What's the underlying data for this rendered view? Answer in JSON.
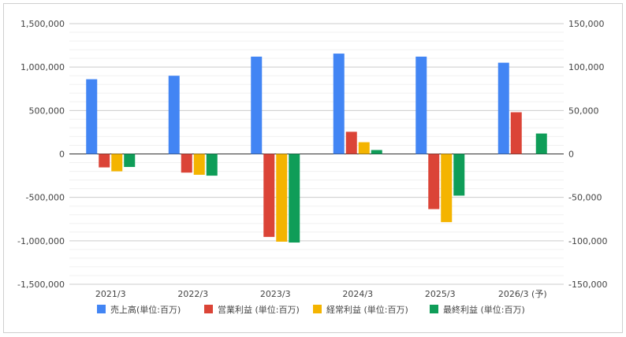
{
  "chart_data": {
    "type": "bar",
    "categories": [
      "2021/3",
      "2022/3",
      "2023/3",
      "2024/3",
      "2025/3",
      "2026/3 (予)"
    ],
    "y_left": {
      "ylim": [
        -1500000,
        1500000
      ],
      "ticks": [
        "1,500,000",
        "1,000,000",
        "500,000",
        "0",
        "-500,000",
        "-1,000,000",
        "-1,500,000"
      ]
    },
    "y_right": {
      "ylim": [
        -150000,
        150000
      ],
      "ticks": [
        "150,000",
        "100,000",
        "50,000",
        "0",
        "-50,000",
        "-100,000",
        "-150,000"
      ]
    },
    "grid": true,
    "legend_position": "bottom",
    "series": [
      {
        "name": "売上高(単位:百万)",
        "color": "#4285f4",
        "axis": "left",
        "values": [
          860000,
          900000,
          1120000,
          1155000,
          1120000,
          1050000
        ]
      },
      {
        "name": "営業利益 (単位:百万)",
        "color": "#db4437",
        "axis": "right",
        "values": [
          -15500,
          -21500,
          -95500,
          25500,
          -63500,
          48000
        ]
      },
      {
        "name": "経常利益 (単位:百万)",
        "color": "#f4b400",
        "axis": "right",
        "values": [
          -20000,
          -24000,
          -101000,
          13500,
          -78500,
          null
        ]
      },
      {
        "name": "最終利益 (単位:百万)",
        "color": "#0f9d58",
        "axis": "right",
        "values": [
          -15000,
          -25000,
          -102000,
          4500,
          -48000,
          23500
        ]
      }
    ]
  }
}
